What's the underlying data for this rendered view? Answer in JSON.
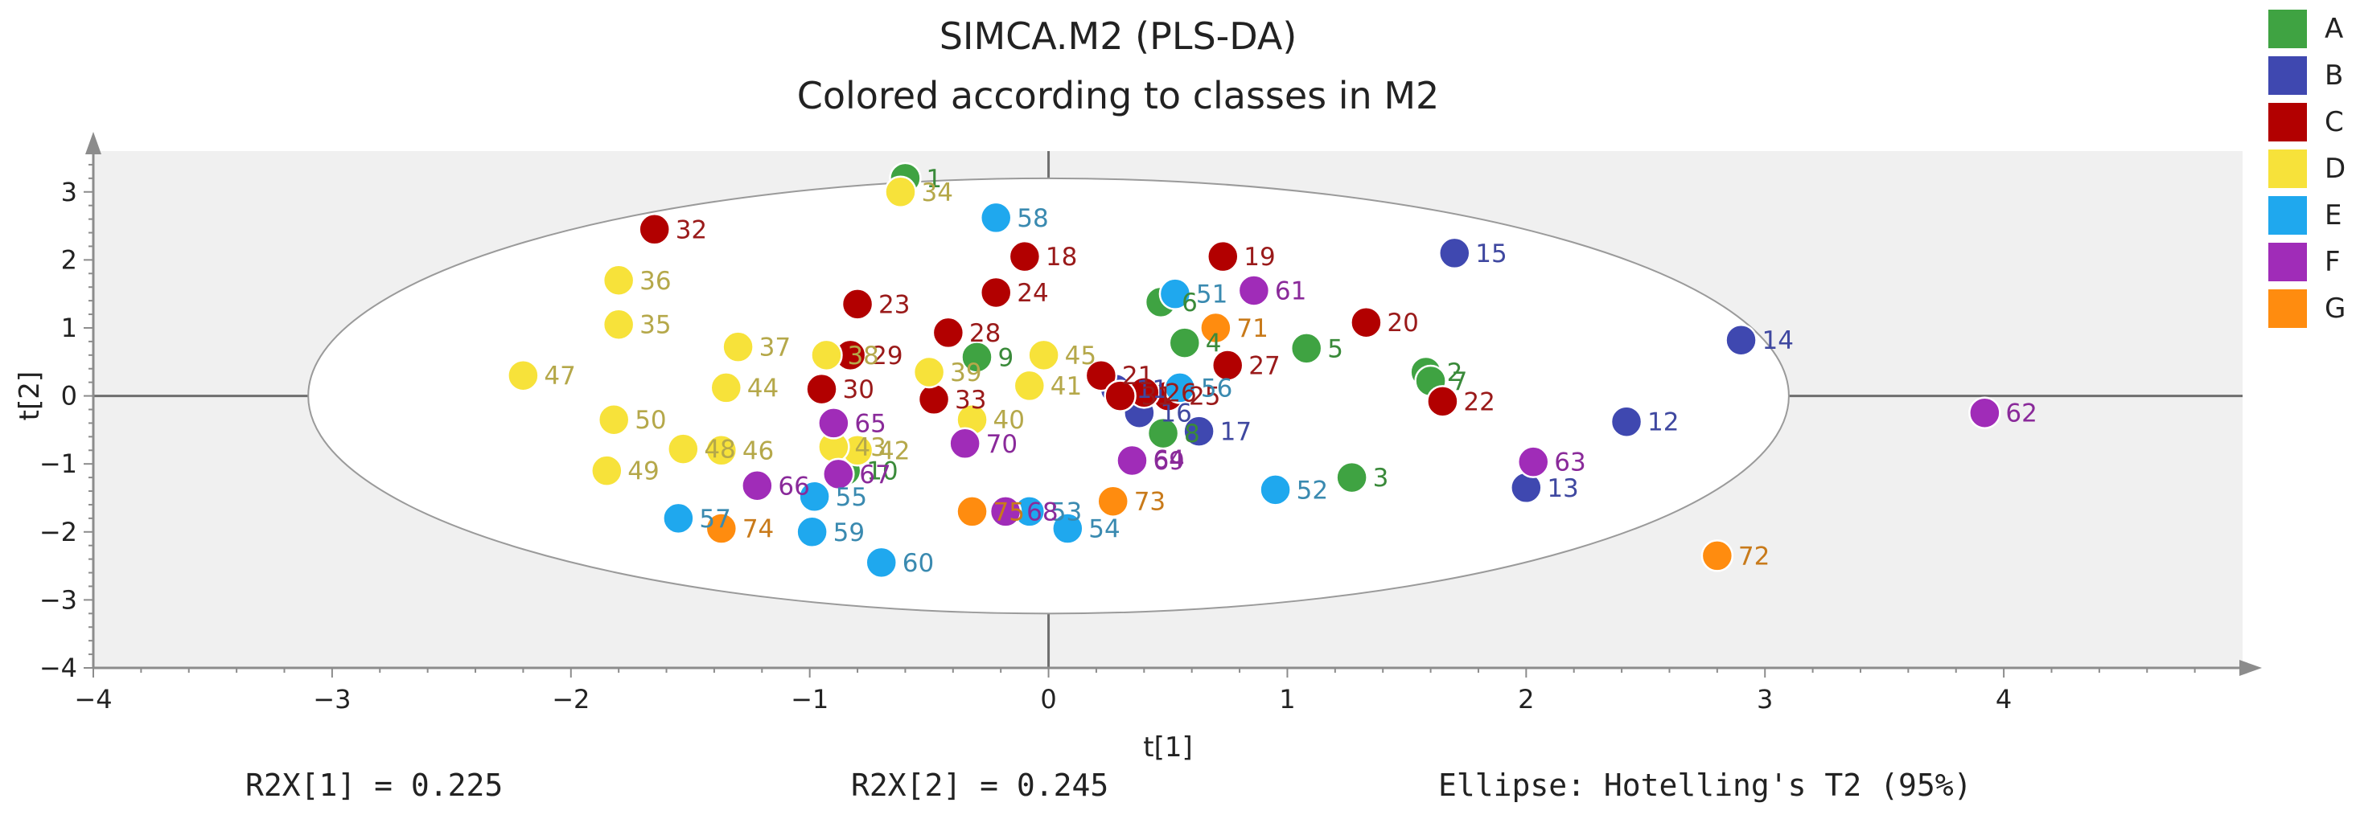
{
  "chart_data": {
    "type": "scatter",
    "title": "SIMCA.M2 (PLS-DA)",
    "subtitle": "Colored according to classes in M2",
    "xlabel": "t[1]",
    "ylabel": "t[2]",
    "xlim": [
      -4,
      5
    ],
    "ylim": [
      -4,
      3.6
    ],
    "x_ticks": [
      -4,
      -3,
      -2,
      -1,
      0,
      1,
      2,
      3,
      4
    ],
    "y_ticks": [
      -4,
      -3,
      -2,
      -1,
      0,
      1,
      2,
      3
    ],
    "ellipse": {
      "center": [
        0,
        0
      ],
      "rx": 3.1,
      "ry": 3.2
    },
    "legend": [
      {
        "name": "A",
        "color": "#3fa342"
      },
      {
        "name": "B",
        "color": "#3f48b0"
      },
      {
        "name": "C",
        "color": "#b20000"
      },
      {
        "name": "D",
        "color": "#f7e23a"
      },
      {
        "name": "E",
        "color": "#1fa8ee"
      },
      {
        "name": "F",
        "color": "#a02cb8"
      },
      {
        "name": "G",
        "color": "#ff8c0f"
      }
    ],
    "label_colors": {
      "A": "#3a8a3a",
      "B": "#3f48a0",
      "C": "#9a1a1a",
      "D": "#b5a84a",
      "E": "#3a8ab0",
      "F": "#8a2a9a",
      "G": "#c87a1a"
    },
    "points": [
      {
        "label": "1",
        "class": "A",
        "x": -0.6,
        "y": 3.2
      },
      {
        "label": "2",
        "class": "A",
        "x": 1.58,
        "y": 0.35
      },
      {
        "label": "3",
        "class": "A",
        "x": 1.27,
        "y": -1.2
      },
      {
        "label": "4",
        "class": "A",
        "x": 0.57,
        "y": 0.78
      },
      {
        "label": "5",
        "class": "A",
        "x": 1.08,
        "y": 0.7
      },
      {
        "label": "6",
        "class": "A",
        "x": 0.47,
        "y": 1.38
      },
      {
        "label": "7",
        "class": "A",
        "x": 1.6,
        "y": 0.22
      },
      {
        "label": "8",
        "class": "A",
        "x": 0.48,
        "y": -0.55
      },
      {
        "label": "9",
        "class": "A",
        "x": -0.3,
        "y": 0.57
      },
      {
        "label": "10",
        "class": "A",
        "x": -0.85,
        "y": -1.1
      },
      {
        "label": "11",
        "class": "B",
        "x": 0.28,
        "y": 0.1
      },
      {
        "label": "12",
        "class": "B",
        "x": 2.42,
        "y": -0.38
      },
      {
        "label": "13",
        "class": "B",
        "x": 2.0,
        "y": -1.35
      },
      {
        "label": "14",
        "class": "B",
        "x": 2.9,
        "y": 0.82
      },
      {
        "label": "15",
        "class": "B",
        "x": 1.7,
        "y": 2.1
      },
      {
        "label": "16",
        "class": "B",
        "x": 0.38,
        "y": -0.25
      },
      {
        "label": "17",
        "class": "B",
        "x": 0.63,
        "y": -0.52
      },
      {
        "label": "18",
        "class": "C",
        "x": -0.1,
        "y": 2.05
      },
      {
        "label": "19",
        "class": "C",
        "x": 0.73,
        "y": 2.05
      },
      {
        "label": "20",
        "class": "C",
        "x": 1.33,
        "y": 1.08
      },
      {
        "label": "21",
        "class": "C",
        "x": 0.22,
        "y": 0.3
      },
      {
        "label": "22",
        "class": "C",
        "x": 1.65,
        "y": -0.08
      },
      {
        "label": "23",
        "class": "C",
        "x": -0.8,
        "y": 1.35
      },
      {
        "label": "24",
        "class": "C",
        "x": -0.22,
        "y": 1.52
      },
      {
        "label": "25",
        "class": "C",
        "x": 0.5,
        "y": 0.0
      },
      {
        "label": "26",
        "class": "C",
        "x": 0.4,
        "y": 0.05
      },
      {
        "label": "27",
        "class": "C",
        "x": 0.75,
        "y": 0.45
      },
      {
        "label": "28",
        "class": "C",
        "x": -0.42,
        "y": 0.93
      },
      {
        "label": "29",
        "class": "C",
        "x": -0.83,
        "y": 0.6
      },
      {
        "label": "30",
        "class": "C",
        "x": -0.95,
        "y": 0.1
      },
      {
        "label": "31",
        "class": "C",
        "x": 0.3,
        "y": 0.0
      },
      {
        "label": "32",
        "class": "C",
        "x": -1.65,
        "y": 2.45
      },
      {
        "label": "33",
        "class": "C",
        "x": -0.48,
        "y": -0.05
      },
      {
        "label": "34",
        "class": "D",
        "x": -0.62,
        "y": 3.0
      },
      {
        "label": "35",
        "class": "D",
        "x": -1.8,
        "y": 1.05
      },
      {
        "label": "36",
        "class": "D",
        "x": -1.8,
        "y": 1.7
      },
      {
        "label": "37",
        "class": "D",
        "x": -1.3,
        "y": 0.72
      },
      {
        "label": "38",
        "class": "D",
        "x": -0.93,
        "y": 0.6
      },
      {
        "label": "39",
        "class": "D",
        "x": -0.5,
        "y": 0.35
      },
      {
        "label": "40",
        "class": "D",
        "x": -0.32,
        "y": -0.35
      },
      {
        "label": "41",
        "class": "D",
        "x": -0.08,
        "y": 0.15
      },
      {
        "label": "42",
        "class": "D",
        "x": -0.8,
        "y": -0.8
      },
      {
        "label": "43",
        "class": "D",
        "x": -0.9,
        "y": -0.75
      },
      {
        "label": "44",
        "class": "D",
        "x": -1.35,
        "y": 0.12
      },
      {
        "label": "45",
        "class": "D",
        "x": -0.02,
        "y": 0.6
      },
      {
        "label": "46",
        "class": "D",
        "x": -1.37,
        "y": -0.8
      },
      {
        "label": "47",
        "class": "D",
        "x": -2.2,
        "y": 0.3
      },
      {
        "label": "48",
        "class": "D",
        "x": -1.53,
        "y": -0.78
      },
      {
        "label": "49",
        "class": "D",
        "x": -1.85,
        "y": -1.1
      },
      {
        "label": "50",
        "class": "D",
        "x": -1.82,
        "y": -0.35
      },
      {
        "label": "51",
        "class": "E",
        "x": 0.53,
        "y": 1.5
      },
      {
        "label": "52",
        "class": "E",
        "x": 0.95,
        "y": -1.38
      },
      {
        "label": "53",
        "class": "E",
        "x": -0.08,
        "y": -1.7
      },
      {
        "label": "54",
        "class": "E",
        "x": 0.08,
        "y": -1.95
      },
      {
        "label": "55",
        "class": "E",
        "x": -0.98,
        "y": -1.48
      },
      {
        "label": "56",
        "class": "E",
        "x": 0.55,
        "y": 0.12
      },
      {
        "label": "57",
        "class": "E",
        "x": -1.55,
        "y": -1.8
      },
      {
        "label": "58",
        "class": "E",
        "x": -0.22,
        "y": 2.62
      },
      {
        "label": "59",
        "class": "E",
        "x": -0.99,
        "y": -2.0
      },
      {
        "label": "60",
        "class": "E",
        "x": -0.7,
        "y": -2.45
      },
      {
        "label": "61",
        "class": "F",
        "x": 0.86,
        "y": 1.55
      },
      {
        "label": "62",
        "class": "F",
        "x": 3.92,
        "y": -0.25
      },
      {
        "label": "63",
        "class": "F",
        "x": 2.03,
        "y": -0.97
      },
      {
        "label": "64",
        "class": "F",
        "x": 0.35,
        "y": -0.93
      },
      {
        "label": "65",
        "class": "F",
        "x": -0.9,
        "y": -0.4
      },
      {
        "label": "66",
        "class": "F",
        "x": -1.22,
        "y": -1.32
      },
      {
        "label": "67",
        "class": "F",
        "x": -0.88,
        "y": -1.15
      },
      {
        "label": "68",
        "class": "F",
        "x": -0.18,
        "y": -1.7
      },
      {
        "label": "69",
        "class": "F",
        "x": 0.35,
        "y": -0.95
      },
      {
        "label": "70",
        "class": "F",
        "x": -0.35,
        "y": -0.7
      },
      {
        "label": "71",
        "class": "G",
        "x": 0.7,
        "y": 1.0
      },
      {
        "label": "72",
        "class": "G",
        "x": 2.8,
        "y": -2.35
      },
      {
        "label": "73",
        "class": "G",
        "x": 0.27,
        "y": -1.55
      },
      {
        "label": "74",
        "class": "G",
        "x": -1.37,
        "y": -1.95
      },
      {
        "label": "75",
        "class": "G",
        "x": -0.32,
        "y": -1.7
      }
    ]
  },
  "footer": {
    "r2x1": "R2X[1] = 0.225",
    "r2x2": "R2X[2] = 0.245",
    "ellipse": "Ellipse: Hotelling's T2 (95%)"
  }
}
